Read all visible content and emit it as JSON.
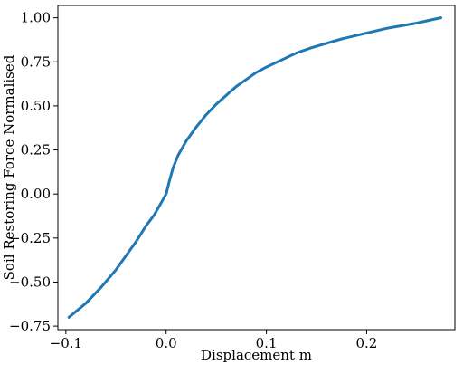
{
  "chart_data": {
    "type": "line",
    "title": "",
    "xlabel": "Displacement m",
    "ylabel": "Soil Restoring Force Normalised",
    "xlim": [
      -0.108,
      0.288
    ],
    "ylim": [
      -0.77,
      1.07
    ],
    "xticks": [
      -0.1,
      0.0,
      0.1,
      0.2
    ],
    "xtick_labels": [
      "−0.1",
      "0.0",
      "0.1",
      "0.2"
    ],
    "yticks": [
      -0.75,
      -0.5,
      -0.25,
      0.0,
      0.25,
      0.5,
      0.75,
      1.0
    ],
    "ytick_labels": [
      "−0.75",
      "−0.50",
      "−0.25",
      "0.00",
      "0.25",
      "0.50",
      "0.75",
      "1.00"
    ],
    "grid": false,
    "series": [
      {
        "color": "#1f77b4",
        "x": [
          -0.097,
          -0.08,
          -0.065,
          -0.05,
          -0.04,
          -0.03,
          -0.02,
          -0.012,
          -0.006,
          0.0,
          0.003,
          0.007,
          0.012,
          0.02,
          0.03,
          0.04,
          0.05,
          0.06,
          0.07,
          0.08,
          0.09,
          0.1,
          0.115,
          0.13,
          0.145,
          0.16,
          0.175,
          0.19,
          0.205,
          0.22,
          0.235,
          0.25,
          0.262,
          0.274
        ],
        "y": [
          -0.7,
          -0.62,
          -0.53,
          -0.43,
          -0.35,
          -0.27,
          -0.18,
          -0.12,
          -0.06,
          0.0,
          0.07,
          0.15,
          0.22,
          0.3,
          0.38,
          0.45,
          0.51,
          0.56,
          0.61,
          0.65,
          0.69,
          0.72,
          0.76,
          0.8,
          0.83,
          0.855,
          0.88,
          0.9,
          0.92,
          0.94,
          0.955,
          0.97,
          0.985,
          1.0
        ]
      }
    ]
  }
}
